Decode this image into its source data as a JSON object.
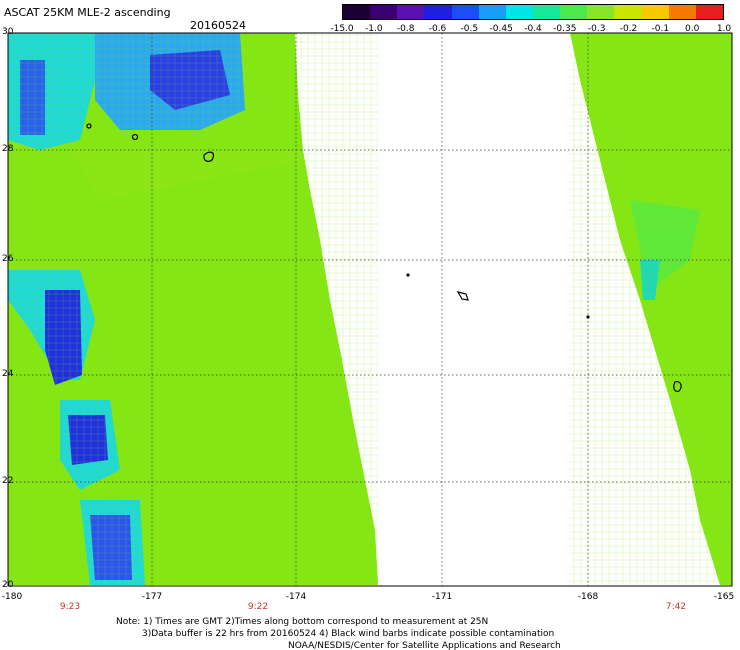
{
  "title": "ASCAT 25KM MLE-2 ascending",
  "date": "20160524",
  "colorbar": {
    "labels": [
      "-15.0",
      "-1.0",
      "-0.8",
      "-0.6",
      "-0.5",
      "-0.45",
      "-0.4",
      "-0.35",
      "-0.3",
      "-0.2",
      "-0.1",
      "0.0",
      "1.0"
    ],
    "colors": [
      "#1a0033",
      "#3b0070",
      "#5a10b0",
      "#2020e0",
      "#1a4ff5",
      "#1a9ef5",
      "#00e6e6",
      "#18e89a",
      "#4ce84c",
      "#88e62a",
      "#c8e600",
      "#f5c800",
      "#f57a00",
      "#e61e1e"
    ]
  },
  "map": {
    "lat_labels": [
      "30",
      "28",
      "26",
      "24",
      "22",
      "20"
    ],
    "lon_labels": [
      "-180",
      "-177",
      "-174",
      "-171",
      "-168",
      "-165"
    ],
    "pass_times": [
      "9:23",
      "9:22",
      "7:42"
    ]
  },
  "note": {
    "line1": "Note: 1) Times are GMT 2)Times along bottom correspond to measurement at 25N",
    "line2": "3)Data buffer is 22 hrs from 20160524 4) Black wind barbs indicate possible contamination",
    "line3": "NOAA/NESDIS/Center for Satellite Applications and Research"
  }
}
